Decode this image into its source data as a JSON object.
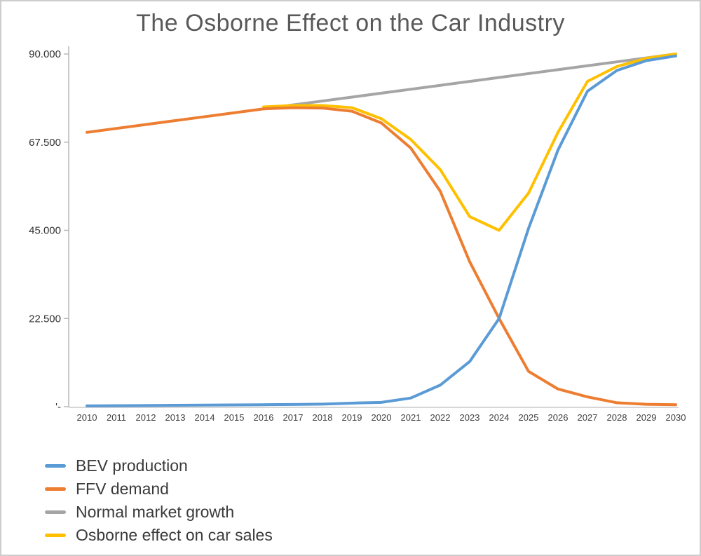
{
  "chart_data": {
    "type": "line",
    "title": "The Osborne Effect on the Car Industry",
    "title_color": "#595959",
    "x": [
      2010,
      2011,
      2012,
      2013,
      2014,
      2015,
      2016,
      2017,
      2018,
      2019,
      2020,
      2021,
      2022,
      2023,
      2024,
      2025,
      2026,
      2027,
      2028,
      2029,
      2030
    ],
    "x_tick_labels": [
      "2010",
      "2011",
      "2012",
      "2013",
      "2014",
      "2015",
      "2016",
      "2017",
      "2018",
      "2019",
      "2020",
      "2021",
      "2022",
      "2023",
      "2024",
      "2025",
      "2026",
      "2027",
      "2028",
      "2029",
      "2030"
    ],
    "y_tick_values": [
      90000,
      67500,
      45000,
      22500,
      0
    ],
    "y_tick_labels": [
      "90.000",
      "67.500",
      "45.000",
      "22.500",
      "'-"
    ],
    "ylim": [
      0,
      90000
    ],
    "grid": false,
    "legend_position": "bottom-left",
    "series": [
      {
        "name": "BEV production",
        "color": "#5B9BD5",
        "values": [
          200,
          250,
          300,
          350,
          400,
          450,
          500,
          550,
          650,
          900,
          1100,
          2200,
          5500,
          11500,
          22500,
          45500,
          65500,
          80500,
          85800,
          88300,
          89500
        ]
      },
      {
        "name": "FFV demand",
        "color": "#ED7D31",
        "values": [
          70000,
          71000,
          72000,
          73000,
          74000,
          75000,
          76000,
          76300,
          76200,
          75400,
          72400,
          66000,
          55000,
          37000,
          22500,
          9000,
          4500,
          2500,
          1000,
          600,
          500
        ]
      },
      {
        "name": "Normal market growth",
        "color": "#A5A5A5",
        "values": [
          null,
          null,
          null,
          null,
          null,
          null,
          76000,
          77000,
          78000,
          79000,
          80000,
          81000,
          82000,
          83000,
          84000,
          85000,
          86000,
          87000,
          88000,
          89000,
          90000
        ]
      },
      {
        "name": "Osborne effect on car sales",
        "color": "#FFC000",
        "values": [
          null,
          null,
          null,
          null,
          null,
          null,
          76500,
          76850,
          76850,
          76300,
          73500,
          68200,
          60500,
          48500,
          45000,
          54500,
          70000,
          83000,
          86800,
          88900,
          90000
        ]
      }
    ]
  }
}
